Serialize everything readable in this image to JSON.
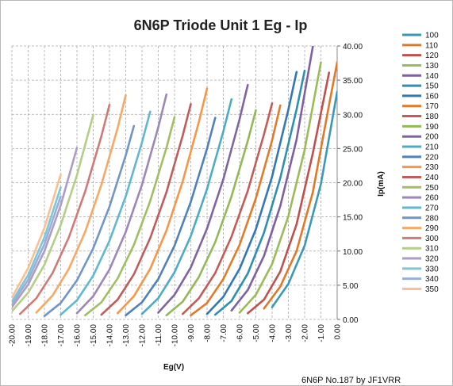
{
  "chart_data": {
    "type": "line",
    "title": "6N6P Triode Unit 1 Eg - Ip",
    "xlabel": "Eg(V)",
    "ylabel": "Ip(mA)",
    "xlim": [
      -20,
      0
    ],
    "ylim": [
      0,
      40
    ],
    "x_ticks": [
      "-20.00",
      "-19.00",
      "-18.00",
      "-17.00",
      "-16.00",
      "-15.00",
      "-14.00",
      "-13.00",
      "-12.00",
      "-11.00",
      "-10.00",
      "-9.00",
      "-8.00",
      "-7.00",
      "-6.00",
      "-5.00",
      "-4.00",
      "-3.00",
      "-2.00",
      "-1.00",
      "0.00"
    ],
    "y_ticks": [
      "0.00",
      "5.00",
      "10.00",
      "15.00",
      "20.00",
      "25.00",
      "30.00",
      "35.00",
      "40.00"
    ],
    "grid": true,
    "legend_position": "right",
    "footer": "6N6P No.187  by JF1VRR",
    "series": [
      {
        "name": "100",
        "color": "#3A98B8",
        "x": [
          -4,
          -3,
          -2,
          -1,
          0
        ],
        "y": [
          1.8,
          5.2,
          10.8,
          19.8,
          33.3
        ]
      },
      {
        "name": "110",
        "color": "#E0782A",
        "x": [
          -4.5,
          -3.5,
          -2.5,
          -1.5,
          -0.5,
          0
        ],
        "y": [
          1.6,
          4.8,
          10.0,
          18.6,
          31.4,
          37.6
        ]
      },
      {
        "name": "120",
        "color": "#C0504D",
        "x": [
          -5.5,
          -4.5,
          -3.5,
          -2.5,
          -1.5,
          -0.5
        ],
        "y": [
          0.9,
          2.9,
          7.0,
          13.9,
          24.3,
          36.1
        ]
      },
      {
        "name": "130",
        "color": "#9BBB59",
        "x": [
          -6,
          -5,
          -4,
          -3,
          -2,
          -1
        ],
        "y": [
          1.0,
          3.6,
          8.1,
          15.1,
          24.8,
          37.6
        ]
      },
      {
        "name": "140",
        "color": "#7E5FA0",
        "x": [
          -6.5,
          -5.5,
          -4.5,
          -3.5,
          -2.5,
          -1.5
        ],
        "y": [
          1.3,
          4.3,
          9.3,
          16.6,
          26.3,
          39.9
        ]
      },
      {
        "name": "150",
        "color": "#2E8FAE",
        "x": [
          -7.5,
          -6.5,
          -5.5,
          -4.5,
          -3.5,
          -2.5,
          -2
        ],
        "y": [
          0.7,
          2.7,
          6.7,
          12.7,
          20.7,
          30.7,
          36.4
        ]
      },
      {
        "name": "160",
        "color": "#3178B5",
        "x": [
          -8,
          -7,
          -6,
          -5,
          -4,
          -3,
          -2.5
        ],
        "y": [
          0.8,
          3.3,
          7.4,
          13.2,
          20.9,
          30.7,
          36.2
        ]
      },
      {
        "name": "170",
        "color": "#E17A2A",
        "x": [
          -9,
          -8,
          -7,
          -6,
          -5,
          -4,
          -3.5
        ],
        "y": [
          0.6,
          2.4,
          5.9,
          10.9,
          17.7,
          26.2,
          31.3
        ]
      },
      {
        "name": "180",
        "color": "#C45B57",
        "x": [
          -9.5,
          -8.5,
          -7.5,
          -6.5,
          -5.5,
          -4.5,
          -4
        ],
        "y": [
          0.8,
          3.1,
          6.8,
          12.1,
          18.8,
          27.1,
          31.6
        ]
      },
      {
        "name": "190",
        "color": "#93B856",
        "x": [
          -10.5,
          -9.5,
          -8.5,
          -7.5,
          -6.5,
          -5.5,
          -5
        ],
        "y": [
          0.6,
          2.6,
          6.2,
          11.3,
          18.0,
          26.1,
          30.6
        ]
      },
      {
        "name": "200",
        "color": "#8064A2",
        "x": [
          -11,
          -10,
          -9,
          -8,
          -7,
          -6,
          -5.5
        ],
        "y": [
          1.0,
          3.6,
          7.6,
          13.3,
          20.5,
          29.3,
          34.3
        ]
      },
      {
        "name": "210",
        "color": "#4BACC6",
        "x": [
          -12,
          -11,
          -10,
          -9,
          -8,
          -7,
          -6.5
        ],
        "y": [
          0.8,
          3.1,
          6.9,
          12.2,
          19.1,
          27.5,
          32.2
        ]
      },
      {
        "name": "220",
        "color": "#4F81BD",
        "x": [
          -13,
          -12,
          -11,
          -10,
          -9,
          -8,
          -7.5
        ],
        "y": [
          0.6,
          2.5,
          5.9,
          10.8,
          17.2,
          25.0,
          29.5
        ]
      },
      {
        "name": "230",
        "color": "#F79646",
        "x": [
          -13.5,
          -12.5,
          -11.5,
          -10.5,
          -9.5,
          -8.5,
          -8
        ],
        "y": [
          0.9,
          3.4,
          7.4,
          13.0,
          20.2,
          28.9,
          33.8
        ]
      },
      {
        "name": "240",
        "color": "#C05C5A",
        "x": [
          -14.5,
          -13.5,
          -12.5,
          -11.5,
          -10.5,
          -9.5,
          -9
        ],
        "y": [
          0.7,
          2.9,
          6.6,
          11.9,
          18.6,
          26.9,
          31.5
        ]
      },
      {
        "name": "250",
        "color": "#A0BF62",
        "x": [
          -15.5,
          -14.5,
          -13.5,
          -12.5,
          -11.5,
          -10.5,
          -10
        ],
        "y": [
          0.6,
          2.5,
          6.0,
          10.9,
          17.3,
          25.1,
          29.6
        ]
      },
      {
        "name": "260",
        "color": "#9D86B8",
        "x": [
          -16,
          -15,
          -14,
          -13,
          -12,
          -11,
          -10.5
        ],
        "y": [
          0.9,
          3.4,
          7.3,
          12.8,
          19.7,
          28.1,
          32.9
        ]
      },
      {
        "name": "270",
        "color": "#60B8D0",
        "x": [
          -17,
          -16,
          -15,
          -14,
          -13,
          -12,
          -11.5
        ],
        "y": [
          0.7,
          2.8,
          6.4,
          11.5,
          18.0,
          25.9,
          30.4
        ]
      },
      {
        "name": "280",
        "color": "#6F95C9",
        "x": [
          -18,
          -17,
          -16,
          -15,
          -14,
          -13,
          -12.5
        ],
        "y": [
          0.5,
          2.4,
          5.7,
          10.4,
          16.5,
          24.0,
          28.3
        ]
      },
      {
        "name": "290",
        "color": "#F8A865",
        "x": [
          -18.5,
          -17.5,
          -16.5,
          -15.5,
          -14.5,
          -13.5,
          -13
        ],
        "y": [
          1.0,
          3.5,
          7.4,
          12.8,
          19.7,
          28.0,
          32.8
        ]
      },
      {
        "name": "300",
        "color": "#D07A78",
        "x": [
          -19.5,
          -18.5,
          -17.5,
          -16.5,
          -15.5,
          -14.5,
          -14
        ],
        "y": [
          0.8,
          3.1,
          6.8,
          12.0,
          18.7,
          26.8,
          31.4
        ]
      },
      {
        "name": "310",
        "color": "#B4CE88",
        "x": [
          -20,
          -19,
          -18,
          -17,
          -16,
          -15
        ],
        "y": [
          1.2,
          3.9,
          8.0,
          13.8,
          21.1,
          29.9
        ]
      },
      {
        "name": "320",
        "color": "#AE9BC6",
        "x": [
          -20,
          -19,
          -18,
          -17,
          -16
        ],
        "y": [
          1.8,
          5.1,
          10.0,
          16.7,
          25.1
        ]
      },
      {
        "name": "330",
        "color": "#7FC5DA",
        "x": [
          -20,
          -19,
          -18,
          -17
        ],
        "y": [
          2.6,
          6.5,
          12.0,
          19.3
        ]
      },
      {
        "name": "340",
        "color": "#96B0D8",
        "x": [
          -20,
          -19,
          -18,
          -17
        ],
        "y": [
          2.2,
          5.8,
          11.0,
          18.0
        ]
      },
      {
        "name": "350",
        "color": "#FAC090",
        "x": [
          -20,
          -19,
          -18,
          -17
        ],
        "y": [
          3.2,
          7.5,
          13.4,
          21.2
        ]
      }
    ]
  }
}
